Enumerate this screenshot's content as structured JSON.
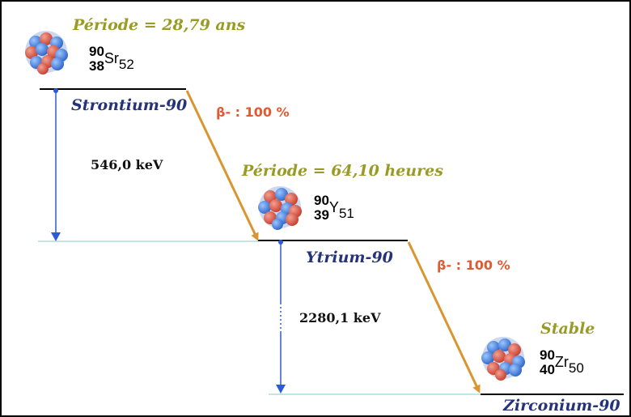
{
  "strontium": {
    "period": "Période = 28,79 ans",
    "mass_number": "90",
    "atomic_number": "38",
    "symbol": "Sr",
    "neutron_number": "52",
    "name": "Strontium-90"
  },
  "decay_1": {
    "label": "β- : 100 %",
    "energy": "546,0 keV"
  },
  "yttrium": {
    "period": "Période = 64,10 heures",
    "mass_number": "90",
    "atomic_number": "39",
    "symbol": "Y",
    "neutron_number": "51",
    "name": "Ytrium-90"
  },
  "decay_2": {
    "label": "β- : 100 %",
    "energy": "2280,1 keV"
  },
  "zirconium": {
    "period": "Stable",
    "mass_number": "90",
    "atomic_number": "40",
    "symbol": "Zr",
    "neutron_number": "50",
    "name": "Zirconium-90"
  },
  "colors": {
    "level_line": "#000000",
    "ground_line": "#a8e0dc",
    "transition_arrow": "#d9952f",
    "energy_arrow": "#2b5bd6",
    "proton": "#e05a4a",
    "neutron": "#3f7fe0"
  }
}
